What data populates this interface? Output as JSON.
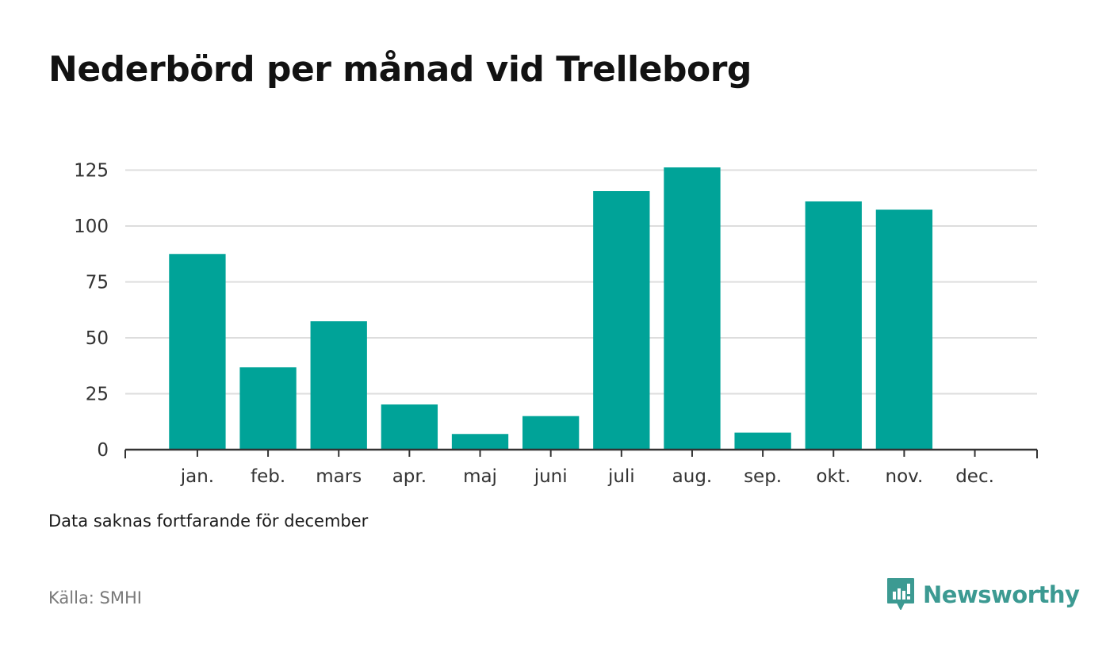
{
  "title": "Nederbörd per månad vid Trelleborg",
  "note": "Data saknas fortfarande för december",
  "source": "Källa: SMHI",
  "brand": {
    "name": "Newsworthy",
    "color": "#3c9a92",
    "icon": "newsworthy-logo-icon"
  },
  "colors": {
    "bar": "#00a398",
    "grid": "#dddddd",
    "axis": "#333333"
  },
  "chart_data": {
    "type": "bar",
    "title": "Nederbörd per månad vid Trelleborg",
    "xlabel": "",
    "ylabel": "",
    "categories": [
      "jan.",
      "feb.",
      "mars",
      "apr.",
      "maj",
      "juni",
      "juli",
      "aug.",
      "sep.",
      "okt.",
      "nov.",
      "dec."
    ],
    "values": [
      87.5,
      36.8,
      57.4,
      20.2,
      7.0,
      15.0,
      115.6,
      126.2,
      7.6,
      111.0,
      107.3,
      null
    ],
    "yticks": [
      0,
      25,
      50,
      75,
      100,
      125
    ],
    "ylim": [
      0,
      127
    ],
    "grid": true,
    "legend": "none"
  }
}
